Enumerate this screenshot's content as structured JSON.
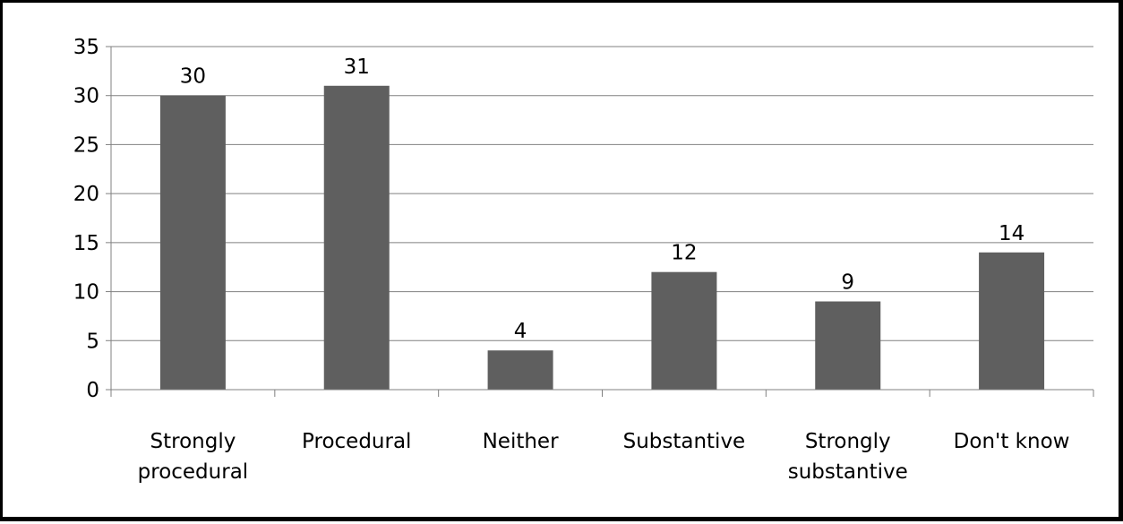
{
  "colors": {
    "bar": "#5f5f5f",
    "grid": "#808080",
    "axis": "#808080",
    "frame": "#000000",
    "text": "#000000"
  },
  "chart_data": {
    "type": "bar",
    "title": "",
    "xlabel": "",
    "ylabel": "",
    "categories": [
      [
        "Strongly",
        "procedural"
      ],
      [
        "Procedural"
      ],
      [
        "Neither"
      ],
      [
        "Substantive"
      ],
      [
        "Strongly",
        "substantive"
      ],
      [
        "Don't know"
      ]
    ],
    "values": [
      30,
      31,
      4,
      12,
      9,
      14
    ],
    "data_labels": [
      "30",
      "31",
      "4",
      "12",
      "9",
      "14"
    ],
    "ylim": [
      0,
      35
    ],
    "yticks": [
      0,
      5,
      10,
      15,
      20,
      25,
      30,
      35
    ],
    "ytick_labels": [
      "0",
      "5",
      "10",
      "15",
      "20",
      "25",
      "30",
      "35"
    ],
    "grid": true,
    "legend": "none"
  }
}
